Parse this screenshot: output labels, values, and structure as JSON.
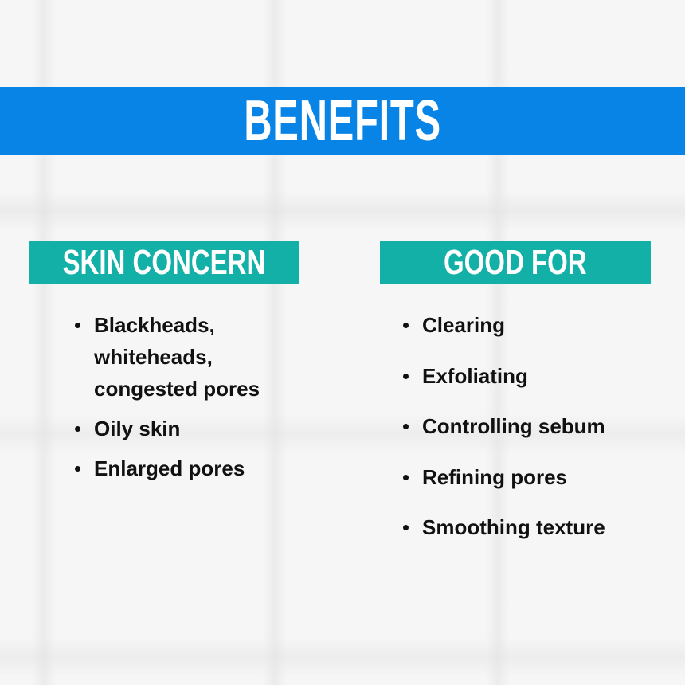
{
  "title": "BENEFITS",
  "colors": {
    "banner": "#0884e6",
    "section_header": "#13b0a7"
  },
  "skin_concern": {
    "heading": "SKIN CONCERN",
    "items": [
      "Blackheads, whiteheads, congested pores",
      "Oily skin",
      "Enlarged pores"
    ]
  },
  "good_for": {
    "heading": "GOOD FOR",
    "items": [
      "Clearing",
      "Exfoliating",
      "Controlling sebum",
      "Refining pores",
      "Smoothing texture"
    ]
  }
}
